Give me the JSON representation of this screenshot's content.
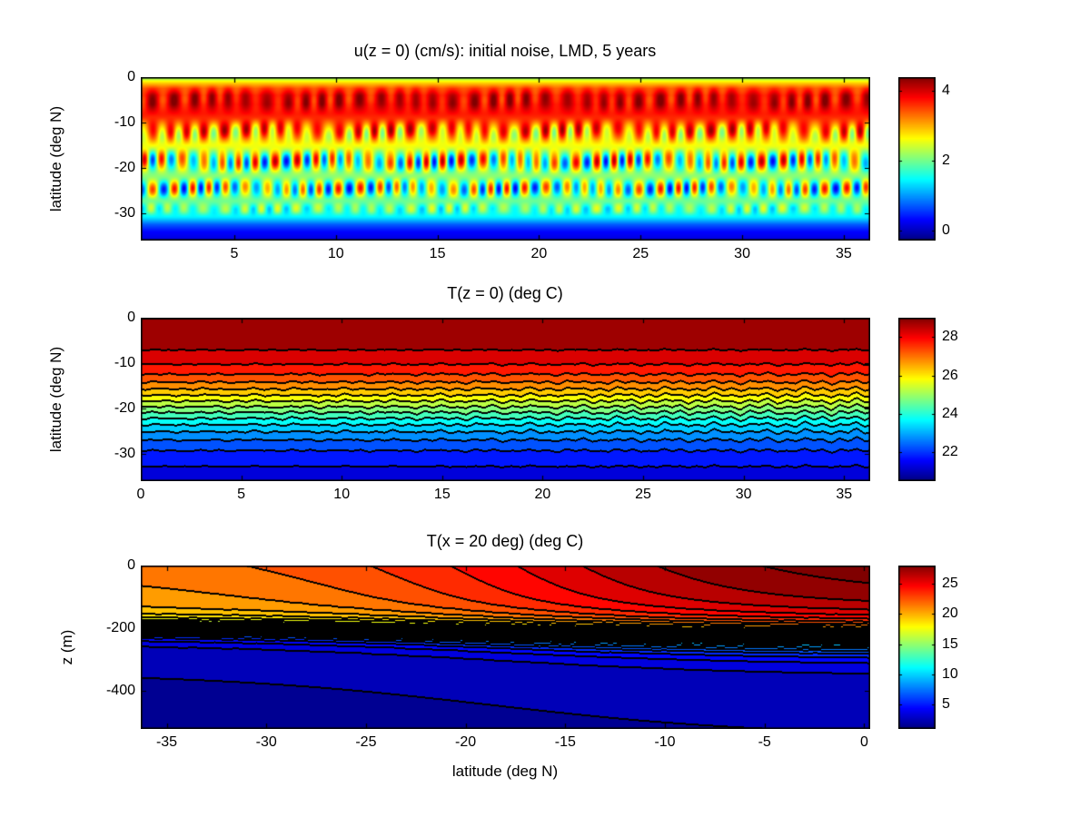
{
  "figure": {
    "background": "#ffffff",
    "text_color": "#000000",
    "colormap": "jet"
  },
  "chart_data": [
    {
      "type": "heatmap",
      "title": "u(z = 0) (cm/s): initial noise, LMD, 5 years",
      "xlabel": "",
      "ylabel": "latitude (deg N)",
      "x_range": [
        0.4,
        36.3
      ],
      "y_range": [
        -36,
        0
      ],
      "x_ticks": [
        5,
        10,
        15,
        20,
        25,
        30,
        35
      ],
      "y_ticks": [
        0,
        -10,
        -20,
        -30
      ],
      "colorbar": {
        "min": -0.3,
        "max": 4.4,
        "ticks": [
          0,
          2,
          4
        ]
      },
      "field": {
        "description": "surface zonal current: broad equatorial jet (red) with rows of tropical-instability-wave stripes and dark-blue southern edge",
        "base_profile": [
          [
            0,
            2.0
          ],
          [
            -1,
            2.7
          ],
          [
            -2.5,
            3.5
          ],
          [
            -4,
            3.9
          ],
          [
            -6,
            3.95
          ],
          [
            -8,
            3.75
          ],
          [
            -10,
            3.45
          ],
          [
            -12,
            3.15
          ],
          [
            -14,
            2.75
          ],
          [
            -16,
            2.45
          ],
          [
            -18,
            2.25
          ],
          [
            -22,
            2.1
          ],
          [
            -26,
            2.0
          ],
          [
            -28,
            1.95
          ],
          [
            -29.5,
            1.8
          ],
          [
            -31,
            1.35
          ],
          [
            -32.5,
            0.7
          ],
          [
            -34,
            0.3
          ],
          [
            -36,
            0.12
          ]
        ],
        "wave_rows": [
          {
            "lat_top": -1.0,
            "lat_bot": -9.0,
            "amp": 0.55,
            "wavelength": 0.92,
            "phase": 0.4
          },
          {
            "lat_top": -8.5,
            "lat_bot": -15.5,
            "amp": 1.15,
            "wavelength": 0.92,
            "phase": 1.9
          },
          {
            "lat_top": -15.0,
            "lat_bot": -22.0,
            "amp": 1.95,
            "wavelength": 0.92,
            "phase": 3.5
          },
          {
            "lat_top": -21.5,
            "lat_bot": -27.5,
            "amp": 1.8,
            "wavelength": 0.92,
            "phase": 0.9
          },
          {
            "lat_top": -27.0,
            "lat_bot": -31.0,
            "amp": 0.7,
            "wavelength": 0.92,
            "phase": 2.4
          }
        ],
        "diagonal_mod": {
          "kx": 0.785,
          "klat": -0.62,
          "depth": 0.45
        },
        "phase_jitter": {
          "amp": 0.9,
          "freq": 0.21
        }
      }
    },
    {
      "type": "contourf",
      "title": "T(z = 0) (deg C)",
      "xlabel": "",
      "ylabel": "latitude (deg N)",
      "x_range": [
        0,
        36.3
      ],
      "y_range": [
        -36,
        0
      ],
      "x_ticks": [
        0,
        5,
        10,
        15,
        20,
        25,
        30,
        35
      ],
      "y_ticks": [
        0,
        -10,
        -20,
        -30
      ],
      "colorbar": {
        "min": 20.5,
        "max": 29,
        "ticks": [
          22,
          24,
          26,
          28
        ]
      },
      "contours": {
        "start": 21,
        "interval": 0.5
      },
      "field": {
        "description": "SST: warm (29 C) near equator decreasing poleward to 21 C, zonal contours with wiggles growing eastward",
        "t_min": 20.9,
        "t_span": 8.3,
        "center_lat": -19.5,
        "width": 5.2,
        "wiggle": {
          "amp": 0.26,
          "lat_center": -20,
          "lat_sigma": 9,
          "x_base": 0.25,
          "x_growth": 0.75
        }
      }
    },
    {
      "type": "contourf",
      "title": "T(x = 20 deg) (deg C)",
      "xlabel": "latitude (deg N)",
      "ylabel": "z (m)",
      "x_range": [
        -36.3,
        0.3
      ],
      "y_range": [
        -520,
        0
      ],
      "x_ticks": [
        -35,
        -30,
        -25,
        -20,
        -15,
        -10,
        -5,
        0
      ],
      "y_ticks": [
        0,
        -200,
        -400
      ],
      "colorbar": {
        "min": 1,
        "max": 28,
        "ticks": [
          5,
          10,
          15,
          20,
          25
        ]
      },
      "contours": {
        "start": 2,
        "interval": 1
      },
      "field": {
        "description": "temperature section: warm surface layer (22 C south to 28.5 C north), sharp thermocline near -200 m, cold (2 C) abyss",
        "t_deep": 1.8,
        "surf_base": 21.4,
        "surf_span": 7.2,
        "surf_center_lat": -17,
        "surf_width": 6,
        "surf_tilt": 0.8,
        "lapse": 0.006,
        "thermo": {
          "z0": -198,
          "deepen": 30,
          "center_lat": -20,
          "width": 7,
          "dz0": 16,
          "dz_grow": 14
        },
        "tail_frac": 0.12,
        "tail_scale": 4,
        "wiggle_amp": 0.12
      }
    }
  ]
}
